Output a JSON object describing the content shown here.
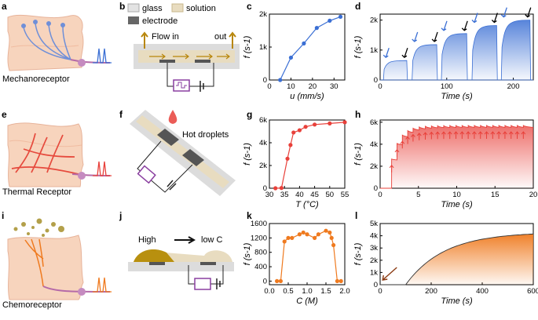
{
  "panel_letters": [
    "a",
    "b",
    "c",
    "d",
    "e",
    "f",
    "g",
    "h",
    "i",
    "j",
    "k",
    "l"
  ],
  "captions": {
    "mechano": "Mechanoreceptor",
    "thermal": "Thermal Receptor",
    "chemo": "Chemoreceptor"
  },
  "legend_b": {
    "glass": "glass",
    "solution": "solution",
    "electrode": "electrode"
  },
  "schematic_b": {
    "flow_in": "Flow in",
    "flow_out": "out"
  },
  "schematic_f": {
    "hot_droplets": "Hot droplets"
  },
  "schematic_j": {
    "high": "High",
    "low_c": "low C"
  },
  "colors": {
    "blue": "#3b6fd4",
    "red": "#e8403a",
    "orange": "#ef7a1f",
    "black": "#000000"
  },
  "chart_data": [
    {
      "panel": "c",
      "type": "line",
      "color": "#3b6fd4",
      "xlabel": "u (mm/s)",
      "ylabel": "f (s-1)",
      "xlim": [
        0,
        35
      ],
      "ylim": [
        0,
        2000
      ],
      "xticks": [
        "0",
        "10",
        "20",
        "30"
      ],
      "yticks": [
        "0",
        "1k",
        "2k"
      ],
      "x": [
        5,
        10,
        16,
        22,
        28,
        33
      ],
      "values": [
        0,
        680,
        1110,
        1580,
        1800,
        1920
      ]
    },
    {
      "panel": "d",
      "type": "area",
      "color": "#3b6fd4",
      "xlabel": "Time (s)",
      "ylabel": "f (s-1)",
      "xlim": [
        0,
        230
      ],
      "ylim": [
        0,
        2200
      ],
      "xticks": [
        "0",
        "100",
        "200"
      ],
      "yticks": [
        "0",
        "1k",
        "2k"
      ],
      "plateaus": [
        {
          "start": 5,
          "end": 40,
          "level": 650
        },
        {
          "start": 48,
          "end": 85,
          "level": 1180
        },
        {
          "start": 92,
          "end": 130,
          "level": 1550
        },
        {
          "start": 138,
          "end": 175,
          "level": 1820
        },
        {
          "start": 182,
          "end": 225,
          "level": 2000
        }
      ]
    },
    {
      "panel": "g",
      "type": "line",
      "color": "#e8403a",
      "xlabel": "T (°C)",
      "ylabel": "f (s-1)",
      "xlim": [
        30,
        55
      ],
      "ylim": [
        0,
        6000
      ],
      "xticks": [
        "30",
        "35",
        "40",
        "45",
        "50",
        "55"
      ],
      "yticks": [
        "0",
        "2k",
        "4k",
        "6k"
      ],
      "x": [
        32,
        34,
        36,
        37,
        38,
        40,
        42,
        45,
        50,
        55
      ],
      "values": [
        0,
        20,
        2600,
        3800,
        4900,
        5100,
        5400,
        5600,
        5700,
        5800
      ]
    },
    {
      "panel": "h",
      "type": "area",
      "color": "#e8403a",
      "xlabel": "Time (s)",
      "ylabel": "f (s-1)",
      "xlim": [
        0,
        20
      ],
      "ylim": [
        0,
        6200
      ],
      "xticks": [
        "0",
        "5",
        "10",
        "15",
        "20"
      ],
      "yticks": [
        "0",
        "2k",
        "4k",
        "6k"
      ],
      "steps": [
        1.5,
        2.2,
        2.9,
        3.6,
        4.3,
        5.1,
        5.9,
        6.7,
        7.5,
        8.3,
        9.1,
        9.9,
        10.7,
        11.5,
        12.3,
        13.1,
        13.9,
        14.7,
        15.5,
        16.3,
        17.1,
        17.9,
        18.7
      ],
      "saturation": 5700
    },
    {
      "panel": "k",
      "type": "line",
      "color": "#ef7a1f",
      "xlabel": "C (M)",
      "ylabel": "f (s-1)",
      "xlim": [
        0,
        2.0
      ],
      "ylim": [
        -100,
        1600
      ],
      "xticks": [
        "0.0",
        "0.5",
        "1.0",
        "1.5",
        "2.0"
      ],
      "yticks": [
        "0",
        "400",
        "800",
        "1200",
        "1600"
      ],
      "x": [
        0.2,
        0.3,
        0.4,
        0.5,
        0.6,
        0.8,
        0.9,
        1.0,
        1.2,
        1.3,
        1.5,
        1.6,
        1.65,
        1.7,
        1.8,
        1.9
      ],
      "values": [
        0,
        0,
        1100,
        1200,
        1200,
        1300,
        1350,
        1300,
        1200,
        1300,
        1400,
        1350,
        1200,
        1000,
        0,
        0
      ]
    },
    {
      "panel": "l",
      "type": "area",
      "color": "#ef7a1f",
      "xlabel": "Time (s)",
      "ylabel": "f (s-1)",
      "xlim": [
        0,
        600
      ],
      "ylim": [
        0,
        5000
      ],
      "xticks": [
        "0",
        "200",
        "400",
        "600"
      ],
      "yticks": [
        "0",
        "1k",
        "2k",
        "3k",
        "4k",
        "5k"
      ],
      "onset": 100,
      "saturation": 4300
    }
  ]
}
